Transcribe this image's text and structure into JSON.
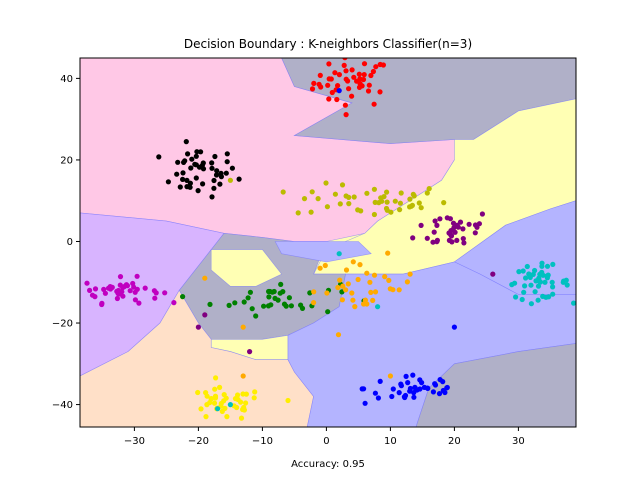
{
  "chart_data": {
    "type": "scatter",
    "title": "Decision Boundary : K-neighbors Classifier(n=3)",
    "xlabel": "Accuracy: 0.95",
    "ylabel": "",
    "xlim": [
      -38.5,
      39
    ],
    "ylim": [
      -45.5,
      45
    ],
    "xticks": [
      -30,
      -20,
      -10,
      0,
      10,
      20,
      30
    ],
    "yticks": [
      -40,
      -20,
      0,
      20,
      40
    ],
    "grid": false,
    "legend": "none",
    "regions": [
      {
        "color": "#ffc8e6",
        "points": [
          [
            -38.5,
            45
          ],
          [
            -22,
            45
          ],
          [
            -7,
            45
          ],
          [
            -5,
            38
          ],
          [
            4,
            34
          ],
          [
            -5,
            26
          ],
          [
            -5,
            26
          ],
          [
            10,
            24
          ],
          [
            20,
            25
          ],
          [
            23,
            25
          ],
          [
            21,
            23
          ],
          [
            20,
            20
          ],
          [
            18,
            15
          ],
          [
            15,
            12
          ],
          [
            11,
            8
          ],
          [
            8,
            5
          ],
          [
            6,
            2
          ],
          [
            0,
            0
          ],
          [
            -5,
            0
          ],
          [
            -10,
            1
          ],
          [
            -16,
            2
          ],
          [
            -25,
            5
          ],
          [
            -38.5,
            7
          ]
        ]
      },
      {
        "color": "#b0b0c8",
        "points": [
          [
            -22,
            45
          ],
          [
            -7,
            45
          ],
          [
            -5,
            38
          ],
          [
            4,
            34
          ],
          [
            -5,
            26
          ],
          [
            10,
            24
          ],
          [
            20,
            25
          ],
          [
            23,
            25
          ],
          [
            30,
            32
          ],
          [
            39,
            35
          ],
          [
            39,
            45
          ]
        ]
      },
      {
        "color": "#ffffb4",
        "points": [
          [
            20,
            25
          ],
          [
            23,
            25
          ],
          [
            30,
            32
          ],
          [
            39,
            35
          ],
          [
            39,
            10
          ],
          [
            35,
            8
          ],
          [
            28,
            4
          ],
          [
            20,
            -5
          ],
          [
            12,
            -8
          ],
          [
            3,
            -8
          ],
          [
            -2,
            -8
          ],
          [
            0,
            -2
          ],
          [
            6,
            2
          ],
          [
            8,
            5
          ],
          [
            11,
            8
          ],
          [
            15,
            12
          ],
          [
            18,
            15
          ],
          [
            20,
            20
          ]
        ]
      },
      {
        "color": "#b4b4ff",
        "points": [
          [
            28,
            4
          ],
          [
            35,
            8
          ],
          [
            39,
            10
          ],
          [
            39,
            -13
          ],
          [
            30,
            -13
          ],
          [
            24,
            -8
          ],
          [
            20,
            -5
          ]
        ]
      },
      {
        "color": "#d8b4ff",
        "points": [
          [
            -38.5,
            7
          ],
          [
            -25,
            5
          ],
          [
            -16,
            2
          ],
          [
            -19,
            -4
          ],
          [
            -23,
            -12
          ],
          [
            -26,
            -20
          ],
          [
            -31,
            -27
          ],
          [
            -38.5,
            -33
          ]
        ]
      },
      {
        "color": "#b0b0c8",
        "points": [
          [
            -16,
            2
          ],
          [
            -10,
            1
          ],
          [
            -5,
            0
          ],
          [
            0,
            0
          ],
          [
            -2,
            -8
          ],
          [
            3,
            -8
          ],
          [
            2,
            -16
          ],
          [
            -2,
            -20
          ],
          [
            -6,
            -23
          ],
          [
            -10,
            -24
          ],
          [
            -14,
            -24
          ],
          [
            -18,
            -24
          ],
          [
            -20,
            -20
          ],
          [
            -23,
            -12
          ],
          [
            -19,
            -4
          ]
        ]
      },
      {
        "color": "#ffffb4",
        "points": [
          [
            -18,
            -24
          ],
          [
            -14,
            -24
          ],
          [
            -10,
            -24
          ],
          [
            -6,
            -23
          ],
          [
            -6,
            -29
          ],
          [
            -11,
            -29
          ],
          [
            -15,
            -27
          ],
          [
            -18,
            -26
          ]
        ]
      },
      {
        "color": "#ffe0c8",
        "points": [
          [
            -38.5,
            -33
          ],
          [
            -31,
            -27
          ],
          [
            -26,
            -20
          ],
          [
            -23,
            -12
          ],
          [
            -20,
            -20
          ],
          [
            -18,
            -24
          ],
          [
            -18,
            -26
          ],
          [
            -15,
            -27
          ],
          [
            -11,
            -29
          ],
          [
            -6,
            -29
          ],
          [
            -5,
            -32
          ],
          [
            -2,
            -38
          ],
          [
            -3,
            -45.5
          ],
          [
            -38.5,
            -45.5
          ]
        ]
      },
      {
        "color": "#b4b4ff",
        "points": [
          [
            -6,
            -23
          ],
          [
            -2,
            -20
          ],
          [
            2,
            -16
          ],
          [
            3,
            -8
          ],
          [
            12,
            -8
          ],
          [
            20,
            -5
          ],
          [
            24,
            -8
          ],
          [
            30,
            -13
          ],
          [
            39,
            -13
          ],
          [
            39,
            -25
          ],
          [
            30,
            -27
          ],
          [
            20,
            -30
          ],
          [
            16,
            -36
          ],
          [
            14,
            -45.5
          ],
          [
            -3,
            -45.5
          ],
          [
            -2,
            -38
          ],
          [
            -5,
            -32
          ],
          [
            -6,
            -29
          ]
        ]
      },
      {
        "color": "#b0b0c8",
        "points": [
          [
            30,
            -27
          ],
          [
            39,
            -25
          ],
          [
            39,
            -45.5
          ],
          [
            14,
            -45.5
          ],
          [
            16,
            -36
          ],
          [
            20,
            -30
          ]
        ]
      },
      {
        "color": "#ffffb4",
        "points": [
          [
            -18,
            -2
          ],
          [
            -10,
            -2
          ],
          [
            -7,
            -8
          ],
          [
            -11,
            -11
          ],
          [
            -15,
            -11
          ],
          [
            -18,
            -7
          ]
        ]
      },
      {
        "color": "#b4b4ff",
        "points": [
          [
            -8,
            0
          ],
          [
            5,
            0
          ],
          [
            7,
            -3
          ],
          [
            0,
            -5
          ],
          [
            -7,
            -3
          ]
        ]
      }
    ],
    "clusters": [
      {
        "color": "#ff0000",
        "cx": 4,
        "cy": 39,
        "sx": 3,
        "sy": 3,
        "n": 45
      },
      {
        "color": "#000000",
        "cx": -20,
        "cy": 17,
        "sx": 3,
        "sy": 3,
        "n": 45
      },
      {
        "color": "#bbbb00",
        "cx": 7,
        "cy": 10,
        "sx": 6,
        "sy": 2,
        "n": 45
      },
      {
        "color": "#800080",
        "cx": 20,
        "cy": 3,
        "sx": 3,
        "sy": 2.5,
        "n": 35
      },
      {
        "color": "#c000c0",
        "cx": -32,
        "cy": -12,
        "sx": 3,
        "sy": 1.5,
        "n": 40
      },
      {
        "color": "#008000",
        "cx": -8,
        "cy": -14,
        "sx": 5,
        "sy": 2,
        "n": 35
      },
      {
        "color": "#ffaa00",
        "cx": 6,
        "cy": -11,
        "sx": 4,
        "sy": 3.5,
        "n": 35
      },
      {
        "color": "#00c0c0",
        "cx": 33,
        "cy": -10,
        "sx": 2.5,
        "sy": 2,
        "n": 45
      },
      {
        "color": "#0000ff",
        "cx": 14,
        "cy": -36,
        "sx": 4,
        "sy": 2,
        "n": 40
      },
      {
        "color": "#ffee00",
        "cx": -16,
        "cy": -40,
        "sx": 3,
        "sy": 2,
        "n": 40
      }
    ],
    "outliers": [
      {
        "x": 2,
        "y": 37,
        "color": "#0000ff"
      },
      {
        "x": -15,
        "y": 15,
        "color": "#bbbb00"
      },
      {
        "x": 2,
        "y": -3,
        "color": "#00c0c0"
      },
      {
        "x": 8,
        "y": -16,
        "color": "#00c0c0"
      },
      {
        "x": 20,
        "y": -21,
        "color": "#0000ff"
      },
      {
        "x": 26,
        "y": -8,
        "color": "#800080"
      },
      {
        "x": -19,
        "y": -9,
        "color": "#ffaa00"
      },
      {
        "x": -12,
        "y": -27,
        "color": "#800080"
      },
      {
        "x": -13,
        "y": -21,
        "color": "#ffaa00"
      },
      {
        "x": -13,
        "y": -33,
        "color": "#ffaa00"
      },
      {
        "x": -6,
        "y": -39,
        "color": "#ffee00"
      },
      {
        "x": 10,
        "y": -33,
        "color": "#ffaa00"
      },
      {
        "x": -17,
        "y": -41,
        "color": "#00c0c0"
      },
      {
        "x": -15,
        "y": -40,
        "color": "#00c0c0"
      },
      {
        "x": -19,
        "y": -18,
        "color": "#800080"
      },
      {
        "x": -20,
        "y": -21,
        "color": "#800080"
      },
      {
        "x": -2,
        "y": -15,
        "color": "#ffaa00"
      },
      {
        "x": -37,
        "y": -12,
        "color": "#c000c0"
      }
    ]
  }
}
